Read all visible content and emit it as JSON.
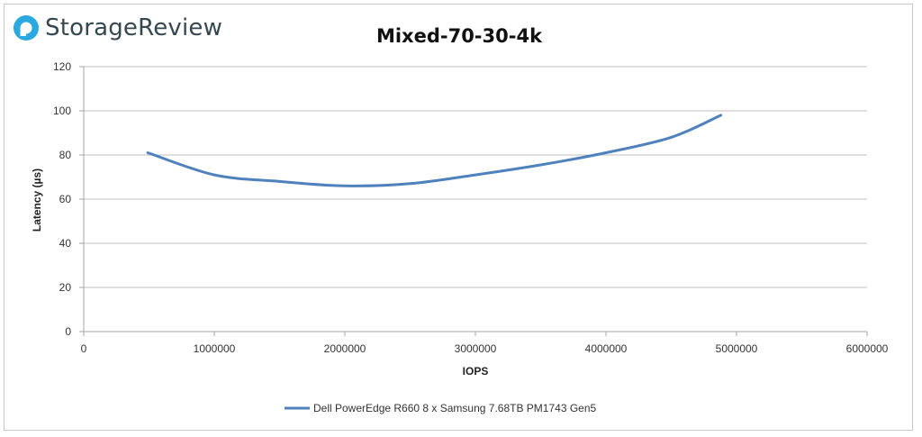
{
  "brand": {
    "name": "StorageReview",
    "logo_icon": "storagereview-logo-icon",
    "logo_color": "#2aa8e0"
  },
  "chart_data": {
    "type": "line",
    "title": "Mixed-70-30-4k",
    "xlabel": "IOPS",
    "ylabel": "Latency (µs)",
    "xlim": [
      0,
      6000000
    ],
    "ylim": [
      0,
      120
    ],
    "x_ticks": [
      0,
      1000000,
      2000000,
      3000000,
      4000000,
      5000000,
      6000000
    ],
    "y_ticks": [
      0,
      20,
      40,
      60,
      80,
      100,
      120
    ],
    "grid": true,
    "legend_position": "bottom",
    "series": [
      {
        "name": "Dell PowerEdge R660 8 x Samsung 7.68TB PM1743 Gen5",
        "color": "#4f81bd",
        "x": [
          490000,
          1000000,
          1500000,
          2000000,
          2500000,
          3000000,
          3500000,
          4000000,
          4500000,
          4880000
        ],
        "y": [
          81,
          71,
          68,
          66,
          67,
          71,
          75.5,
          81,
          88,
          98
        ]
      }
    ]
  }
}
